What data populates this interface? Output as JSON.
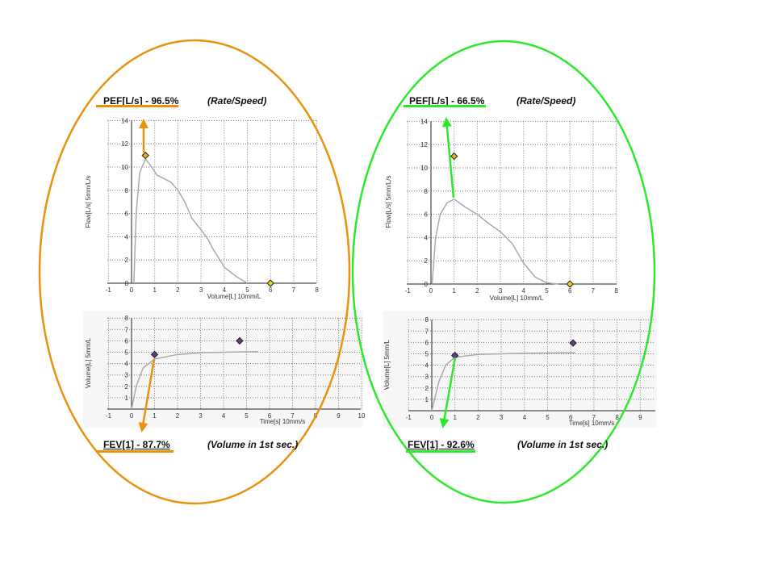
{
  "annotations": {
    "left": {
      "pef": "PEF[L/s] - 96.5%",
      "pef_note": "(Rate/Speed)",
      "fev": "FEV[1] - 87.7%",
      "fev_note": "(Volume in 1st sec.)",
      "color": "#E8920E"
    },
    "right": {
      "pef": "PEF[L/s] - 66.5%",
      "pef_note": "(Rate/Speed)",
      "fev": "FEV[1] - 92.6%",
      "fev_note": "(Volume in 1st sec.)",
      "color": "#2EE82E"
    }
  },
  "chart_data": [
    {
      "id": "left-flow",
      "type": "line",
      "xlabel": "Volume[L] 10mm/L",
      "ylabel": "Flow[L/s] 5mm/L/s",
      "xlim": [
        -1,
        8
      ],
      "ylim": [
        0,
        14
      ],
      "xticks": [
        -1,
        0,
        1,
        2,
        3,
        4,
        5,
        6,
        7,
        8
      ],
      "yticks": [
        0,
        2,
        4,
        6,
        8,
        10,
        12,
        14
      ],
      "grid": true,
      "series": [
        {
          "name": "flow-volume",
          "x": [
            0.1,
            0.15,
            0.2,
            0.35,
            0.6,
            0.8,
            1.1,
            1.4,
            1.7,
            2,
            2.3,
            2.6,
            3,
            3.3,
            3.5,
            4,
            4.5,
            5
          ],
          "y": [
            0,
            3,
            6,
            9.5,
            10.7,
            10.2,
            9.3,
            9,
            8.7,
            8,
            7,
            5.6,
            4.6,
            3.8,
            3,
            1.4,
            0.6,
            0
          ]
        }
      ],
      "markers": [
        {
          "x": 0.6,
          "y": 11,
          "color": "#E8B020"
        },
        {
          "x": 6,
          "y": 0,
          "color": "#E8D020"
        }
      ]
    },
    {
      "id": "left-volume",
      "type": "line",
      "xlabel": "Time[s] 10mm/s",
      "ylabel": "Volume[L] 5mm/L",
      "xlim": [
        -1,
        10
      ],
      "ylim": [
        0,
        8
      ],
      "xticks": [
        -1,
        0,
        1,
        2,
        3,
        4,
        5,
        6,
        7,
        8,
        9,
        10
      ],
      "yticks": [
        1,
        2,
        3,
        4,
        5,
        6,
        7,
        8
      ],
      "grid": true,
      "series": [
        {
          "name": "volume-time",
          "x": [
            0,
            0.1,
            0.2,
            0.5,
            1,
            2,
            3,
            4,
            5.5
          ],
          "y": [
            0,
            1,
            2,
            3.6,
            4.4,
            4.8,
            4.95,
            5,
            5.05
          ]
        }
      ],
      "markers": [
        {
          "x": 1,
          "y": 4.8,
          "color": "#6A3A8A"
        },
        {
          "x": 4.7,
          "y": 6,
          "color": "#6A3A8A"
        }
      ]
    },
    {
      "id": "right-flow",
      "type": "line",
      "xlabel": "Volume[L] 10mm/L",
      "ylabel": "Flow[L/s] 5mm/L/s",
      "xlim": [
        -1,
        8
      ],
      "ylim": [
        0,
        14
      ],
      "xticks": [
        -1,
        0,
        1,
        2,
        3,
        4,
        5,
        6,
        7,
        8
      ],
      "yticks": [
        0,
        2,
        4,
        6,
        8,
        10,
        12,
        14
      ],
      "grid": true,
      "series": [
        {
          "name": "flow-volume",
          "x": [
            0.05,
            0.2,
            0.4,
            0.7,
            1,
            1.5,
            2,
            2.5,
            3,
            3.5,
            4,
            4.5,
            5,
            5.5
          ],
          "y": [
            0,
            4,
            6,
            7,
            7.3,
            6.6,
            6,
            5.2,
            4.5,
            3.5,
            1.8,
            0.6,
            0.1,
            0
          ]
        }
      ],
      "markers": [
        {
          "x": 1,
          "y": 11,
          "color": "#E8B020"
        },
        {
          "x": 6,
          "y": 0,
          "color": "#E8D020"
        }
      ]
    },
    {
      "id": "right-volume",
      "type": "line",
      "xlabel": "Time[s] 10mm/s",
      "ylabel": "Volume[L] 5mm/L",
      "xlim": [
        -1,
        10
      ],
      "ylim": [
        0,
        8
      ],
      "xticks": [
        -1,
        0,
        1,
        2,
        3,
        4,
        5,
        6,
        7,
        8,
        9
      ],
      "yticks": [
        1,
        2,
        3,
        4,
        5,
        6,
        7,
        8
      ],
      "grid": true,
      "series": [
        {
          "name": "volume-time",
          "x": [
            0,
            0.3,
            0.6,
            1,
            2,
            4,
            6.2
          ],
          "y": [
            0,
            2.5,
            4,
            4.7,
            4.95,
            5.05,
            5.1
          ]
        }
      ],
      "markers": [
        {
          "x": 1,
          "y": 4.85,
          "color": "#6A3A8A"
        },
        {
          "x": 6.1,
          "y": 5.95,
          "color": "#6A3A8A"
        }
      ]
    }
  ]
}
